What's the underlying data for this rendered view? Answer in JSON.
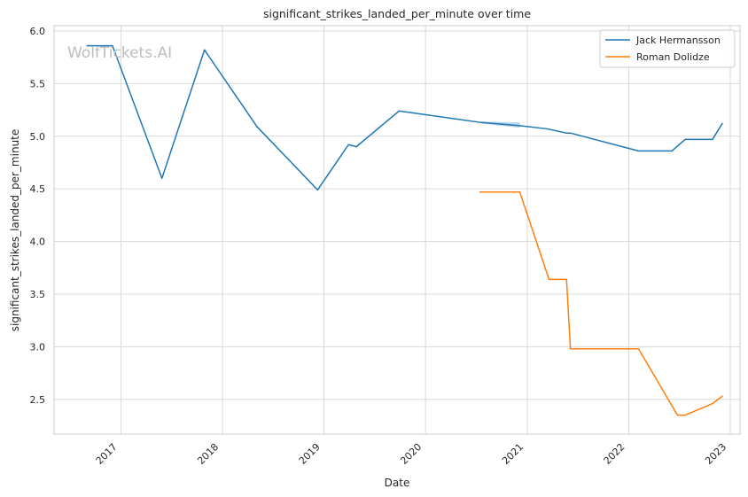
{
  "watermark": "WolfTickets.AI",
  "chart_data": {
    "type": "line",
    "title": "significant_strikes_landed_per_minute over time",
    "xlabel": "Date",
    "ylabel": "significant_strikes_landed_per_minute",
    "x_type": "date",
    "xlim": [
      "2016-05-05",
      "2023-02-05"
    ],
    "ylim": [
      2.17,
      6.05
    ],
    "xticks": [
      {
        "date": "2017-01-01",
        "label": "2017"
      },
      {
        "date": "2018-01-01",
        "label": "2018"
      },
      {
        "date": "2019-01-01",
        "label": "2019"
      },
      {
        "date": "2020-01-01",
        "label": "2020"
      },
      {
        "date": "2021-01-01",
        "label": "2021"
      },
      {
        "date": "2022-01-01",
        "label": "2022"
      },
      {
        "date": "2023-01-01",
        "label": "2023"
      }
    ],
    "yticks": [
      {
        "value": 2.5,
        "label": "2.5"
      },
      {
        "value": 3.0,
        "label": "3.0"
      },
      {
        "value": 3.5,
        "label": "3.5"
      },
      {
        "value": 4.0,
        "label": "4.0"
      },
      {
        "value": 4.5,
        "label": "4.5"
      },
      {
        "value": 5.0,
        "label": "5.0"
      },
      {
        "value": 5.5,
        "label": "5.5"
      },
      {
        "value": 6.0,
        "label": "6.0"
      }
    ],
    "grid": true,
    "legend": {
      "position": "top-right"
    },
    "series": [
      {
        "name": "Jack Hermansson",
        "color": "#1f77b4",
        "points": [
          {
            "x": "2016-09-01",
            "y": 5.86
          },
          {
            "x": "2016-12-01",
            "y": 5.86
          },
          {
            "x": "2017-05-28",
            "y": 4.6
          },
          {
            "x": "2017-10-28",
            "y": 5.82
          },
          {
            "x": "2018-05-05",
            "y": 5.09
          },
          {
            "x": "2018-12-09",
            "y": 4.49
          },
          {
            "x": "2019-03-30",
            "y": 4.92
          },
          {
            "x": "2019-04-27",
            "y": 4.9
          },
          {
            "x": "2019-09-28",
            "y": 5.24
          },
          {
            "x": "2020-07-20",
            "y": 5.13
          },
          {
            "x": "2020-12-05",
            "y": 5.1
          },
          {
            "x": "2021-03-13",
            "y": 5.07
          },
          {
            "x": "2021-05-22",
            "y": 5.03
          },
          {
            "x": "2021-06-05",
            "y": 5.03
          },
          {
            "x": "2022-02-05",
            "y": 4.86
          },
          {
            "x": "2022-06-05",
            "y": 4.86
          },
          {
            "x": "2022-07-23",
            "y": 4.97
          },
          {
            "x": "2022-10-29",
            "y": 4.97
          },
          {
            "x": "2022-12-03",
            "y": 5.12
          }
        ]
      },
      {
        "name": "Roman Dolidze",
        "color": "#ff7f0e",
        "points": [
          {
            "x": "2020-07-15",
            "y": 4.47
          },
          {
            "x": "2020-12-05",
            "y": 4.47
          },
          {
            "x": "2021-03-20",
            "y": 3.64
          },
          {
            "x": "2021-05-22",
            "y": 3.64
          },
          {
            "x": "2021-06-05",
            "y": 2.98
          },
          {
            "x": "2022-02-05",
            "y": 2.98
          },
          {
            "x": "2022-06-25",
            "y": 2.35
          },
          {
            "x": "2022-07-23",
            "y": 2.35
          },
          {
            "x": "2022-10-29",
            "y": 2.46
          },
          {
            "x": "2022-12-03",
            "y": 2.53
          }
        ]
      }
    ],
    "bands": [
      {
        "series": "Jack Hermansson",
        "color": "#1f77b4",
        "x": [
          "2020-07-20",
          "2020-12-05"
        ],
        "upper": [
          5.14,
          5.13
        ],
        "lower": [
          5.12,
          5.08
        ]
      }
    ]
  }
}
